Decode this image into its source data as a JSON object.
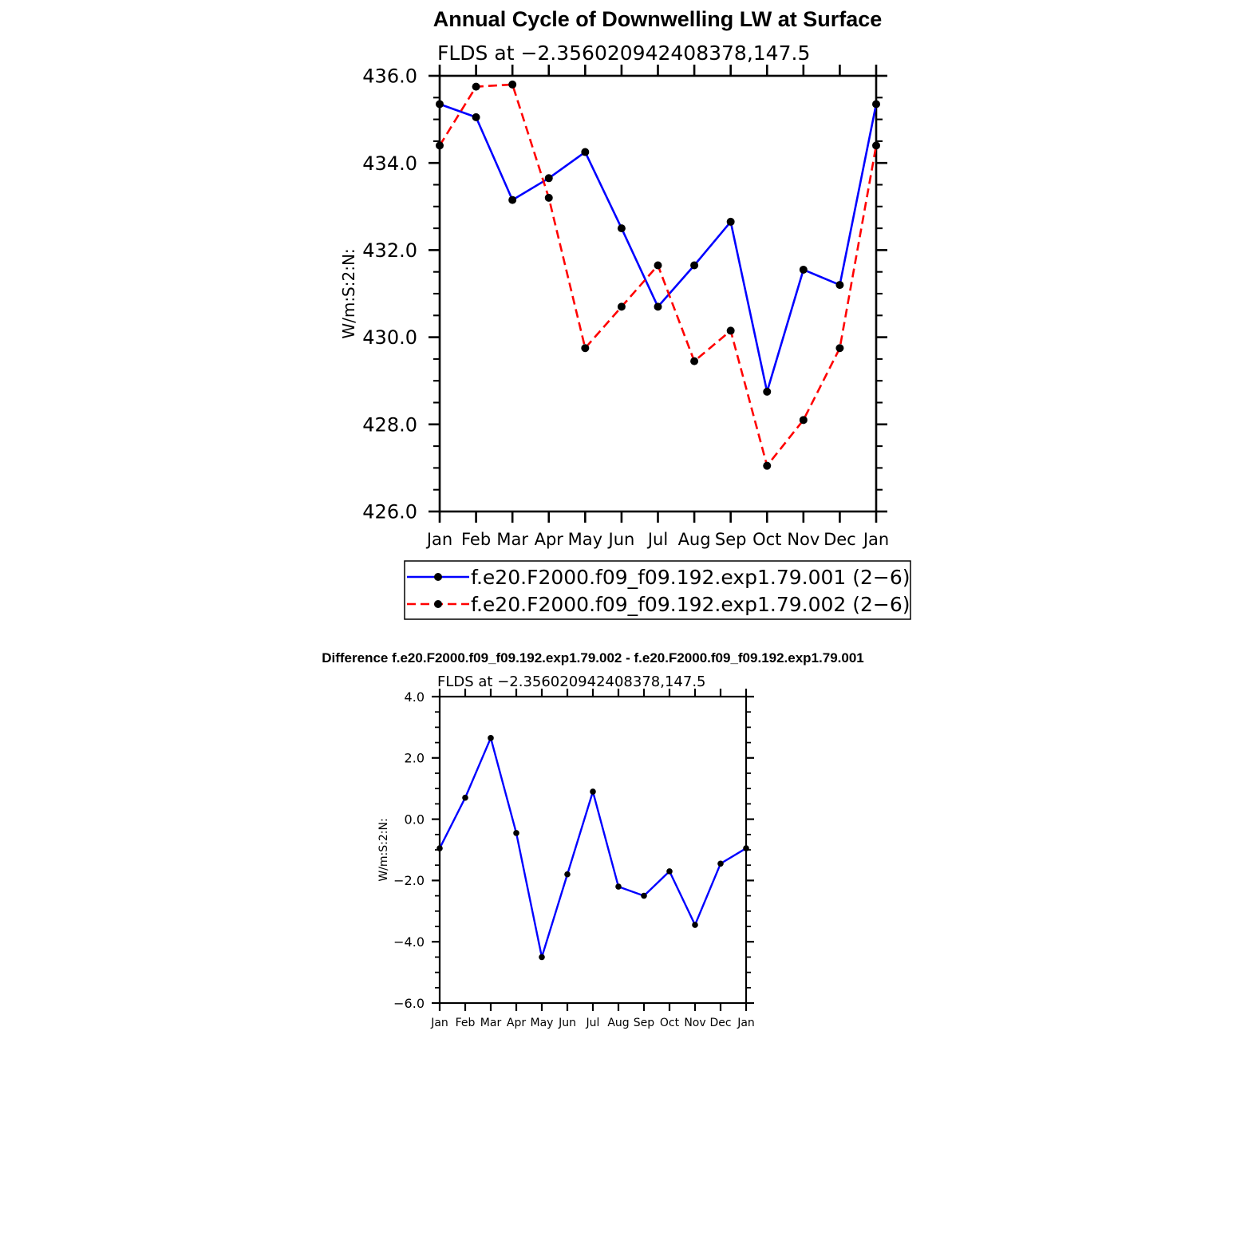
{
  "chart_data": [
    {
      "type": "line",
      "title": "Annual Cycle of Downwelling LW at Surface",
      "subtitle": "FLDS at −2.356020942408378,147.5",
      "xlabel": "",
      "ylabel": "W/m:S:2:N:",
      "categories": [
        "Jan",
        "Feb",
        "Mar",
        "Apr",
        "May",
        "Jun",
        "Jul",
        "Aug",
        "Sep",
        "Oct",
        "Nov",
        "Dec",
        "Jan"
      ],
      "ylim": [
        426.0,
        436.0
      ],
      "yticks": [
        "426.0",
        "428.0",
        "430.0",
        "432.0",
        "434.0",
        "436.0"
      ],
      "grid": false,
      "legend_position": "bottom",
      "series": [
        {
          "name": "f.e20.F2000.f09_f09.192.exp1.79.001 (2−6)",
          "color": "#0000ff",
          "dash": "solid",
          "values": [
            435.35,
            435.05,
            433.15,
            433.65,
            434.25,
            432.5,
            430.7,
            431.65,
            432.65,
            428.75,
            431.55,
            431.2,
            435.35
          ]
        },
        {
          "name": "f.e20.F2000.f09_f09.192.exp1.79.002 (2−6)",
          "color": "#ff0000",
          "dash": "dashed",
          "values": [
            434.4,
            435.75,
            435.8,
            433.2,
            429.75,
            430.7,
            431.65,
            429.45,
            430.15,
            427.05,
            428.1,
            429.75,
            434.4
          ]
        }
      ]
    },
    {
      "type": "line",
      "title": "Difference f.e20.F2000.f09_f09.192.exp1.79.002 - f.e20.F2000.f09_f09.192.exp1.79.001",
      "subtitle": "FLDS at −2.356020942408378,147.5",
      "xlabel": "",
      "ylabel": "W/m:S:2:N:",
      "categories": [
        "Jan",
        "Feb",
        "Mar",
        "Apr",
        "May",
        "Jun",
        "Jul",
        "Aug",
        "Sep",
        "Oct",
        "Nov",
        "Dec",
        "Jan"
      ],
      "ylim": [
        -6.0,
        4.0
      ],
      "yticks": [
        "−6.0",
        "−4.0",
        "−2.0",
        "0.0",
        "2.0",
        "4.0"
      ],
      "grid": false,
      "series": [
        {
          "name": "Difference",
          "color": "#0000ff",
          "dash": "solid",
          "values": [
            -0.95,
            0.7,
            2.65,
            -0.45,
            -4.5,
            -1.8,
            0.9,
            -2.2,
            -2.5,
            -1.7,
            -3.45,
            -1.45,
            -0.95
          ]
        }
      ]
    }
  ]
}
